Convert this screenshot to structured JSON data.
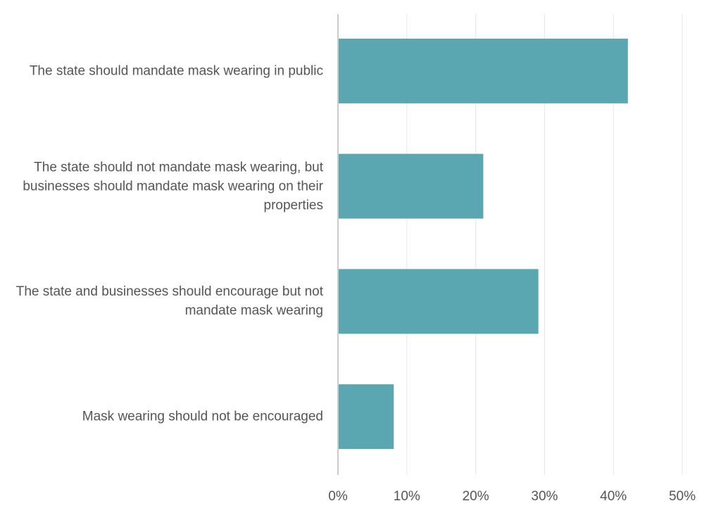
{
  "chart_data": {
    "type": "bar",
    "orientation": "horizontal",
    "categories": [
      "The state should mandate mask wearing in public",
      "The state should not mandate mask wearing, but businesses should mandate mask wearing on their properties",
      "The state and businesses should encourage but not mandate mask wearing",
      "Mask wearing should not be encouraged"
    ],
    "values": [
      42,
      21,
      29,
      8
    ],
    "color": "#5ba7b1",
    "xlim": [
      0,
      50
    ],
    "xticks": [
      {
        "value": 0,
        "label": "0%"
      },
      {
        "value": 10,
        "label": "10%"
      },
      {
        "value": 20,
        "label": "20%"
      },
      {
        "value": 30,
        "label": "30%"
      },
      {
        "value": 40,
        "label": "40%"
      },
      {
        "value": 50,
        "label": "50%"
      }
    ],
    "grid": true
  }
}
